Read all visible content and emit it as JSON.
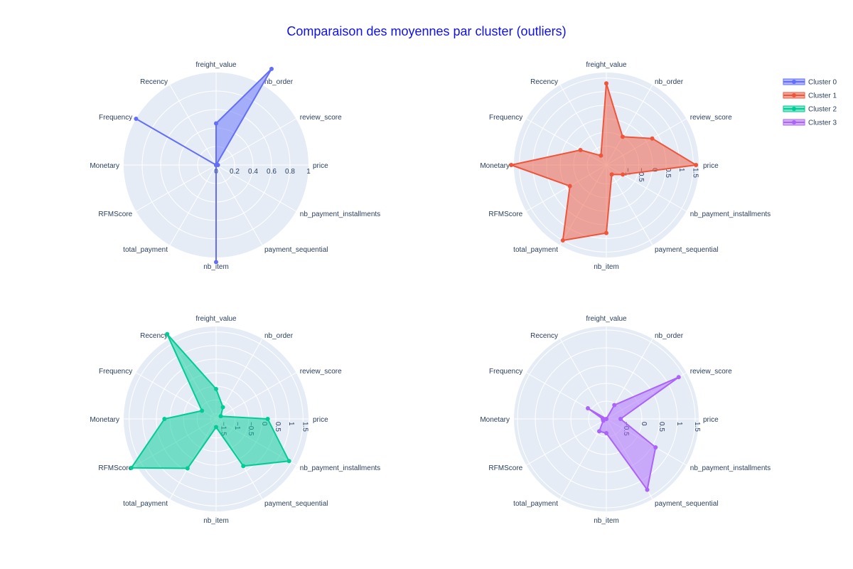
{
  "title": "Comparaison des moyennes par cluster (outliers)",
  "colors": {
    "Cluster 0": "#636efa",
    "Cluster 1": "#ef553b",
    "Cluster 2": "#00cc96",
    "Cluster 3": "#ab63fa",
    "polar_bg": "#e5ecf6",
    "grid": "#ffffff",
    "text": "#2a3f5f"
  },
  "legend": {
    "placement": "top-right",
    "items": [
      "Cluster 0",
      "Cluster 1",
      "Cluster 2",
      "Cluster 3"
    ]
  },
  "chart_data": [
    {
      "type": "radar",
      "series_name": "Cluster 0",
      "theta": [
        "price",
        "review_score",
        "nb_order",
        "freight_value",
        "Recency",
        "Frequency",
        "Monetary",
        "RFMScore",
        "total_payment",
        "nb_item",
        "payment_sequential",
        "nb_payment_installments"
      ],
      "r": [
        0.02,
        0,
        1.2,
        0.45,
        0,
        1.0,
        0,
        0,
        0,
        1.05,
        0,
        0
      ],
      "radial_range": [
        0,
        1
      ],
      "radial_ticks": [
        "0",
        "0.2",
        "0.4",
        "0.6",
        "0.8",
        "1"
      ]
    },
    {
      "type": "radar",
      "series_name": "Cluster 1",
      "theta": [
        "price",
        "review_score",
        "nb_order",
        "freight_value",
        "Recency",
        "Frequency",
        "Monetary",
        "RFMScore",
        "total_payment",
        "nb_item",
        "payment_sequential",
        "nb_payment_installments"
      ],
      "r": [
        1.6,
        0.25,
        -0.5,
        1.3,
        -1.3,
        -0.6,
        1.8,
        -0.15,
        1.5,
        0.8,
        -1.3,
        -1.0
      ],
      "radial_range": [
        -1.7,
        1.7
      ],
      "radial_ticks": [
        "−1",
        "−0.5",
        "0",
        "0.5",
        "1",
        "1.5"
      ]
    },
    {
      "type": "radar",
      "series_name": "Cluster 2",
      "theta": [
        "price",
        "review_score",
        "nb_order",
        "freight_value",
        "Recency",
        "Frequency",
        "Monetary",
        "RFMScore",
        "total_payment",
        "nb_item",
        "payment_sequential",
        "nb_payment_installments"
      ],
      "r": [
        0.2,
        -1.5,
        -1.2,
        -0.6,
        1.9,
        -1.1,
        0.2,
        1.9,
        0.4,
        -1.4,
        0.3,
        1.4
      ],
      "radial_range": [
        -1.7,
        1.7
      ],
      "radial_ticks": [
        "−1.5",
        "−1",
        "−0.5",
        "0",
        "0.5",
        "1",
        "1.5"
      ]
    },
    {
      "type": "radar",
      "series_name": "Cluster 3",
      "theta": [
        "price",
        "review_score",
        "nb_order",
        "freight_value",
        "Recency",
        "Frequency",
        "Monetary",
        "RFMScore",
        "total_payment",
        "nb_item",
        "payment_sequential",
        "nb_payment_installments"
      ],
      "r": [
        -0.6,
        1.35,
        -0.55,
        -1.0,
        -1.0,
        -0.4,
        -0.9,
        -0.9,
        -0.6,
        -0.6,
        1.3,
        0.6
      ],
      "radial_range": [
        -1.0,
        1.6
      ],
      "radial_ticks": [
        "−0.5",
        "0",
        "0.5",
        "1",
        "1.5"
      ]
    }
  ]
}
